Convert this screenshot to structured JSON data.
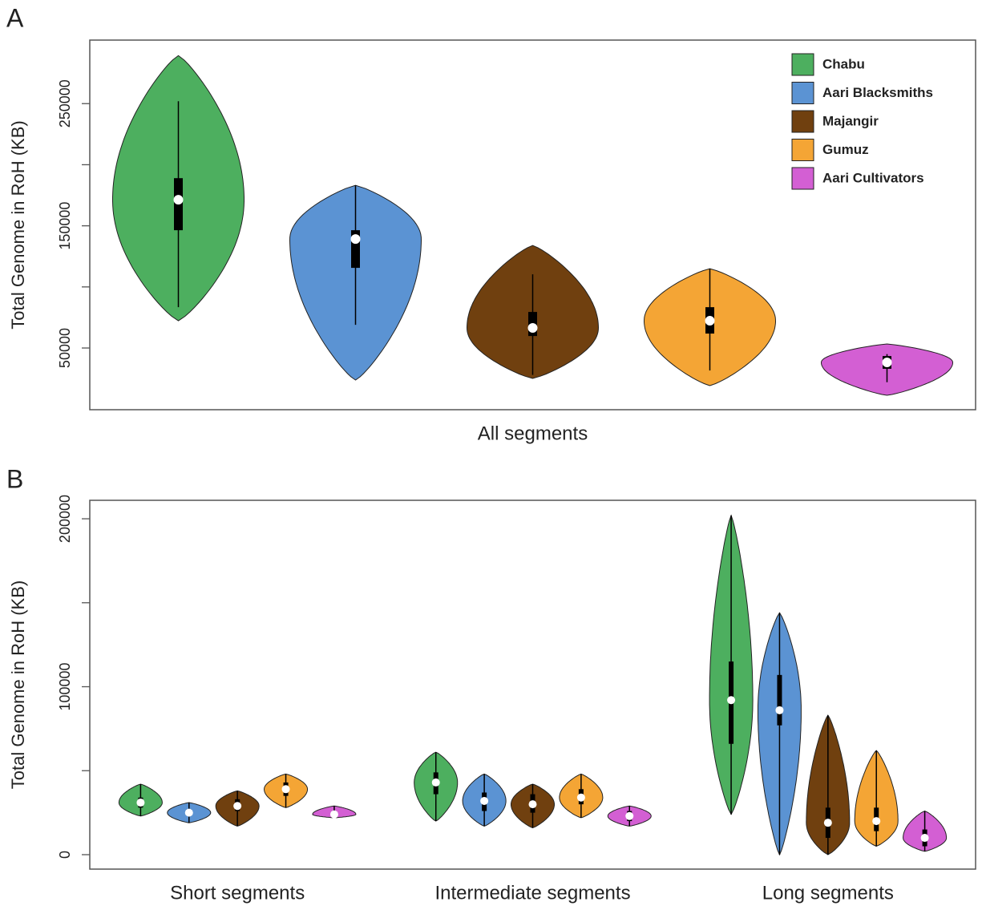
{
  "chart_data": [
    {
      "type": "violin",
      "panel": "A",
      "ylabel": "Total Genome in RoH (KB)",
      "categories": [
        "All segments"
      ],
      "ylim": [
        -500,
        302000
      ],
      "yticks": [
        50000,
        {
          "value": 100000,
          "label": null
        },
        150000,
        {
          "value": 200000,
          "label": null
        },
        250000
      ],
      "legend": "top-right",
      "series": [
        {
          "name": "Chabu",
          "color": "#4daf5f",
          "values": [
            {
              "min": 72300,
              "max": 289300,
              "lower": 83400,
              "upper": 252000,
              "q1": 146400,
              "median": 171300,
              "q3": 189000
            }
          ]
        },
        {
          "name": "Aari Blacksmiths",
          "color": "#5b93d3",
          "values": [
            {
              "min": 23800,
              "max": 183100,
              "lower": 69000,
              "upper": 183100,
              "q1": 115600,
              "median": 139200,
              "q3": 146400
            }
          ]
        },
        {
          "name": "Majangir",
          "color": "#70400f",
          "values": [
            {
              "min": 25100,
              "max": 133900,
              "lower": 28000,
              "upper": 110300,
              "q1": 59800,
              "median": 66400,
              "q3": 79500
            }
          ]
        },
        {
          "name": "Gumuz",
          "color": "#f4a535",
          "values": [
            {
              "min": 19200,
              "max": 114900,
              "lower": 31600,
              "upper": 114900,
              "q1": 61800,
              "median": 72300,
              "q3": 83400
            }
          ]
        },
        {
          "name": "Aari Cultivators",
          "color": "#d35fd3",
          "values": [
            {
              "min": 11300,
              "max": 53300,
              "lower": 22000,
              "upper": 45000,
              "q1": 33000,
              "median": 38200,
              "q3": 43400
            }
          ]
        }
      ]
    },
    {
      "type": "violin",
      "panel": "B",
      "ylabel": "Total Genome in RoH (KB)",
      "categories": [
        "Short segments",
        "Intermediate segments",
        "Long segments"
      ],
      "ylim": [
        -8600,
        211000
      ],
      "yticks": [
        0,
        {
          "value": 50000,
          "label": null
        },
        100000,
        {
          "value": 150000,
          "label": null
        },
        200000
      ],
      "series": [
        {
          "color": "#4daf5f",
          "values": [
            {
              "min": 23000,
              "max": 42000,
              "lower": 23000,
              "upper": 42000,
              "q1": 28000,
              "median": 31000,
              "q3": 34000
            },
            {
              "min": 20000,
              "max": 61000,
              "lower": 20000,
              "upper": 61000,
              "q1": 36000,
              "median": 43000,
              "q3": 49000
            },
            {
              "min": 24000,
              "max": 202000,
              "lower": 24000,
              "upper": 202000,
              "q1": 66000,
              "median": 92000,
              "q3": 115000
            }
          ]
        },
        {
          "color": "#5b93d3",
          "values": [
            {
              "min": 19000,
              "max": 31000,
              "lower": 19000,
              "upper": 31000,
              "q1": 23000,
              "median": 25000,
              "q3": 27000
            },
            {
              "min": 17000,
              "max": 48000,
              "lower": 17000,
              "upper": 48000,
              "q1": 26000,
              "median": 32000,
              "q3": 37000
            },
            {
              "min": 0,
              "max": 144000,
              "lower": 0,
              "upper": 144000,
              "q1": 77000,
              "median": 86000,
              "q3": 107000
            }
          ]
        },
        {
          "color": "#70400f",
          "values": [
            {
              "min": 17000,
              "max": 38000,
              "lower": 17000,
              "upper": 38000,
              "q1": 26000,
              "median": 29000,
              "q3": 33000
            },
            {
              "min": 16000,
              "max": 42000,
              "lower": 16000,
              "upper": 42000,
              "q1": 25000,
              "median": 30000,
              "q3": 36000
            },
            {
              "min": 0,
              "max": 83000,
              "lower": 0,
              "upper": 83000,
              "q1": 10000,
              "median": 19000,
              "q3": 28000
            }
          ]
        },
        {
          "color": "#f4a535",
          "values": [
            {
              "min": 28000,
              "max": 48000,
              "lower": 28000,
              "upper": 48000,
              "q1": 35000,
              "median": 39000,
              "q3": 43000
            },
            {
              "min": 22000,
              "max": 48000,
              "lower": 22000,
              "upper": 48000,
              "q1": 30000,
              "median": 34000,
              "q3": 39000
            },
            {
              "min": 5000,
              "max": 62000,
              "lower": 5000,
              "upper": 62000,
              "q1": 14000,
              "median": 20000,
              "q3": 28000
            }
          ]
        },
        {
          "color": "#d35fd3",
          "values": [
            {
              "min": 22000,
              "max": 29000,
              "lower": 22000,
              "upper": 29000,
              "q1": 23000,
              "median": 24000,
              "q3": 26000
            },
            {
              "min": 17000,
              "max": 29000,
              "lower": 17000,
              "upper": 29000,
              "q1": 20000,
              "median": 23000,
              "q3": 26000
            },
            {
              "min": 2000,
              "max": 26000,
              "lower": 2000,
              "upper": 26000,
              "q1": 5000,
              "median": 10000,
              "q3": 15000
            }
          ]
        }
      ]
    }
  ]
}
